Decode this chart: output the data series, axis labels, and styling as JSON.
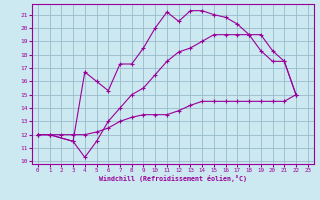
{
  "xlabel": "Windchill (Refroidissement éolien,°C)",
  "bg_color": "#cce8f0",
  "grid_color": "#99bbcc",
  "line_color": "#990099",
  "xlim": [
    -0.5,
    23.5
  ],
  "ylim": [
    9.8,
    21.8
  ],
  "yticks": [
    10,
    11,
    12,
    13,
    14,
    15,
    16,
    17,
    18,
    19,
    20,
    21
  ],
  "xticks": [
    0,
    1,
    2,
    3,
    4,
    5,
    6,
    7,
    8,
    9,
    10,
    11,
    12,
    13,
    14,
    15,
    16,
    17,
    18,
    19,
    20,
    21,
    22,
    23
  ],
  "curve1_x": [
    0,
    1,
    3,
    4,
    5,
    6,
    7,
    8,
    9,
    10,
    11,
    12,
    13,
    14,
    15,
    16,
    17,
    18,
    19,
    20,
    21,
    22
  ],
  "curve1_y": [
    12,
    12,
    11.5,
    16.7,
    16,
    15.3,
    17.3,
    17.3,
    18.5,
    20,
    21.2,
    20.5,
    21.3,
    21.3,
    21.0,
    20.8,
    20.3,
    19.5,
    19.5,
    18.3,
    17.5,
    15
  ],
  "curve2_x": [
    0,
    1,
    3,
    4,
    5,
    6,
    7,
    8,
    9,
    10,
    11,
    12,
    13,
    14,
    15,
    16,
    17,
    18,
    19,
    20,
    21,
    22
  ],
  "curve2_y": [
    12,
    12,
    11.5,
    10.3,
    11.5,
    13,
    14,
    15,
    15.5,
    16.5,
    17.5,
    18.2,
    18.5,
    19.0,
    19.5,
    19.5,
    19.5,
    19.5,
    18.3,
    17.5,
    17.5,
    15
  ],
  "curve3_x": [
    0,
    1,
    2,
    3,
    4,
    5,
    6,
    7,
    8,
    9,
    10,
    11,
    12,
    13,
    14,
    15,
    16,
    17,
    18,
    19,
    20,
    21,
    22
  ],
  "curve3_y": [
    12,
    12,
    12,
    12,
    12,
    12.2,
    12.5,
    13.0,
    13.3,
    13.5,
    13.5,
    13.5,
    13.8,
    14.2,
    14.5,
    14.5,
    14.5,
    14.5,
    14.5,
    14.5,
    14.5,
    14.5,
    15
  ]
}
